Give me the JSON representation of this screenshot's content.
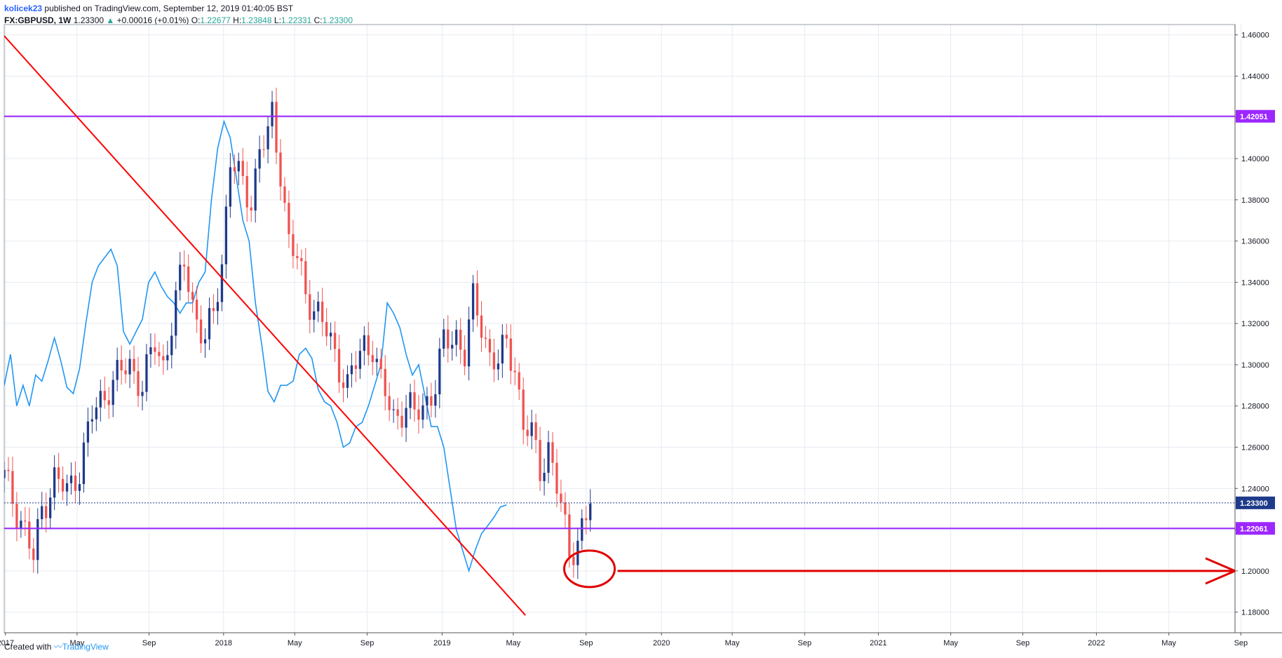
{
  "header": {
    "author": "kolicek23",
    "published": "published on TradingView.com, September 12, 2019 01:40:05 BST",
    "symbol": "FX:GBPUSD, 1W",
    "last": "1.23300",
    "change": "+0.00016 (+0.01%)",
    "o_label": "O:",
    "o_value": "1.22677",
    "h_label": "H:",
    "h_value": "1.23848",
    "l_label": "L:",
    "l_value": "1.22331",
    "c_label": "C:",
    "c_value": "1.23300"
  },
  "footer": {
    "created": "Created with",
    "brand": "TradingView"
  },
  "colors": {
    "up": "#1e3a8a",
    "down": "#ef5350",
    "trendline": "#ff0000",
    "level": "#9c27ff",
    "overlay": "#2196f3",
    "price_tag": "#1e3a8a",
    "annotation": "#e00000",
    "grid": "#e6ebf1"
  },
  "chart_data": {
    "type": "candlestick",
    "title": "FX:GBPUSD, 1W",
    "y_axis": {
      "range": [
        1.17,
        1.465
      ],
      "ticks": [
        "1.46000",
        "1.44000",
        "1.42000",
        "1.40000",
        "1.38000",
        "1.36000",
        "1.34000",
        "1.32000",
        "1.30000",
        "1.28000",
        "1.26000",
        "1.24000",
        "1.22000",
        "1.20000",
        "1.18000"
      ]
    },
    "x_axis": {
      "start_week": 0,
      "end_week": 294,
      "tick_labels": [
        {
          "week": 0.3,
          "label": "2017"
        },
        {
          "week": 17.4,
          "label": "May"
        },
        {
          "week": 34.6,
          "label": "Sep"
        },
        {
          "week": 52.4,
          "label": "2018"
        },
        {
          "week": 69.4,
          "label": "May"
        },
        {
          "week": 86.7,
          "label": "Sep"
        },
        {
          "week": 104.6,
          "label": "2019"
        },
        {
          "week": 121.6,
          "label": "May"
        },
        {
          "week": 139.0,
          "label": "Sep"
        },
        {
          "week": 157.0,
          "label": "2020"
        },
        {
          "week": 173.9,
          "label": "May"
        },
        {
          "week": 191.2,
          "label": "Sep"
        },
        {
          "week": 208.8,
          "label": "2021"
        },
        {
          "week": 226.1,
          "label": "May"
        },
        {
          "week": 243.3,
          "label": "Sep"
        },
        {
          "week": 260.9,
          "label": "2022"
        },
        {
          "week": 278.2,
          "label": "May"
        },
        {
          "week": 295.4,
          "label": "Sep"
        }
      ]
    },
    "price_levels": [
      {
        "name": "resistance",
        "value": 1.42051,
        "label": "1.42051"
      },
      {
        "name": "support",
        "value": 1.22061,
        "label": "1.22061"
      },
      {
        "name": "last-price",
        "value": 1.233,
        "label": "1.23300"
      }
    ],
    "trendline": {
      "from": {
        "week": 0,
        "price": 1.4595
      },
      "to": {
        "week": 124.5,
        "price": 1.1785
      }
    },
    "annotation": {
      "ellipse_center": {
        "week": 139.8,
        "price": 1.201
      },
      "arrow_from": {
        "week": 146.5,
        "price": 1.2
      },
      "arrow_to": {
        "week": 294,
        "price": 1.2
      }
    },
    "overlay_series": {
      "name": "",
      "points": [
        [
          0,
          1.29
        ],
        [
          1.5,
          1.305
        ],
        [
          3,
          1.28
        ],
        [
          4.5,
          1.29
        ],
        [
          6,
          1.28
        ],
        [
          7.5,
          1.295
        ],
        [
          9,
          1.292
        ],
        [
          10.5,
          1.302
        ],
        [
          12,
          1.313
        ],
        [
          13.5,
          1.302
        ],
        [
          15,
          1.289
        ],
        [
          16.5,
          1.286
        ],
        [
          18,
          1.298
        ],
        [
          19.5,
          1.32
        ],
        [
          21,
          1.34
        ],
        [
          22.5,
          1.348
        ],
        [
          24,
          1.352
        ],
        [
          25.5,
          1.356
        ],
        [
          27,
          1.348
        ],
        [
          28.5,
          1.316
        ],
        [
          30,
          1.31
        ],
        [
          31.5,
          1.316
        ],
        [
          33,
          1.322
        ],
        [
          34.5,
          1.34
        ],
        [
          36,
          1.345
        ],
        [
          37.5,
          1.338
        ],
        [
          39,
          1.333
        ],
        [
          40.5,
          1.33
        ],
        [
          42,
          1.325
        ],
        [
          43.5,
          1.33
        ],
        [
          45,
          1.33
        ],
        [
          46.5,
          1.34
        ],
        [
          48,
          1.345
        ],
        [
          49.5,
          1.38
        ],
        [
          51,
          1.405
        ],
        [
          52.5,
          1.418
        ],
        [
          54,
          1.41
        ],
        [
          55.5,
          1.39
        ],
        [
          57,
          1.37
        ],
        [
          58.5,
          1.36
        ],
        [
          60,
          1.33
        ],
        [
          61.5,
          1.31
        ],
        [
          63,
          1.287
        ],
        [
          64.5,
          1.282
        ],
        [
          66,
          1.29
        ],
        [
          67.5,
          1.29
        ],
        [
          69,
          1.292
        ],
        [
          70.5,
          1.305
        ],
        [
          72,
          1.308
        ],
        [
          73.5,
          1.303
        ],
        [
          75,
          1.288
        ],
        [
          76.5,
          1.282
        ],
        [
          78,
          1.28
        ],
        [
          79.5,
          1.272
        ],
        [
          81,
          1.26
        ],
        [
          82.5,
          1.262
        ],
        [
          84,
          1.27
        ],
        [
          85.5,
          1.272
        ],
        [
          87,
          1.28
        ],
        [
          88.5,
          1.29
        ],
        [
          90,
          1.3
        ],
        [
          91.5,
          1.33
        ],
        [
          93,
          1.325
        ],
        [
          94.5,
          1.318
        ],
        [
          96,
          1.305
        ],
        [
          97.5,
          1.295
        ],
        [
          99,
          1.3
        ],
        [
          100.5,
          1.285
        ],
        [
          102,
          1.27
        ],
        [
          103.5,
          1.27
        ],
        [
          105,
          1.26
        ],
        [
          106.5,
          1.24
        ],
        [
          108,
          1.22
        ],
        [
          109.5,
          1.21
        ],
        [
          111,
          1.2
        ],
        [
          112.5,
          1.21
        ],
        [
          114,
          1.218
        ],
        [
          115.5,
          1.222
        ],
        [
          117,
          1.226
        ],
        [
          118.5,
          1.231
        ],
        [
          120,
          1.232
        ]
      ]
    },
    "ohlc": []
  }
}
